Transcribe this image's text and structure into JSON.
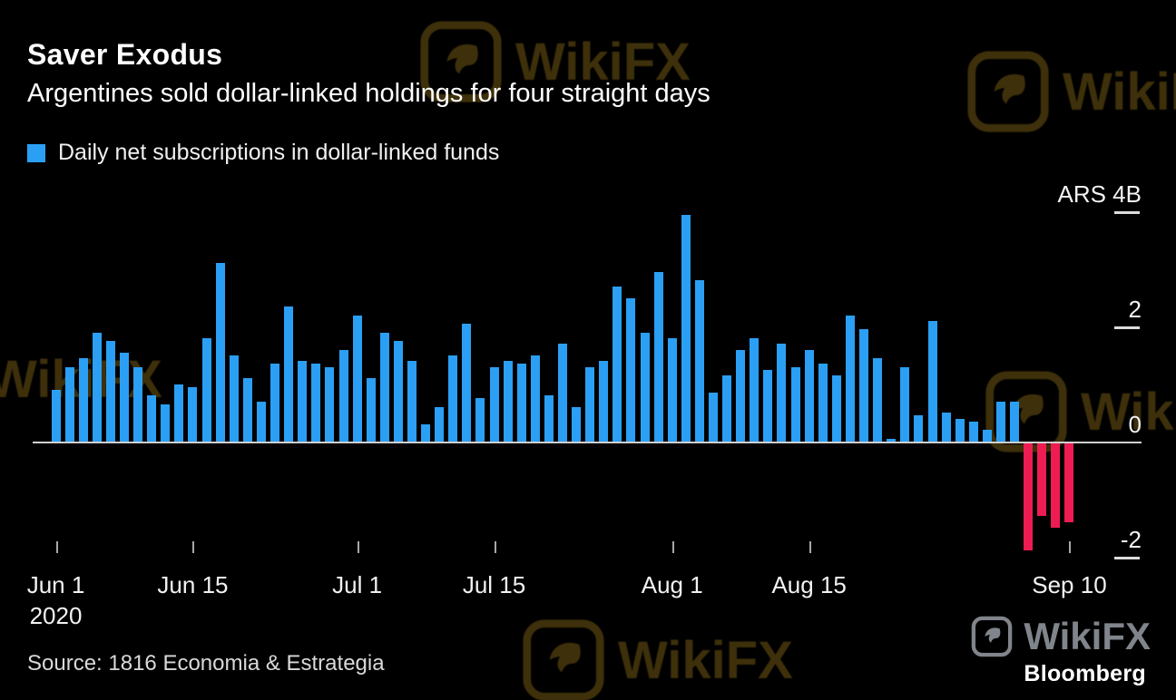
{
  "header": {
    "title": "Saver Exodus",
    "subtitle": "Argentines sold dollar-linked holdings for four straight days",
    "legend_label": "Daily net subscriptions in dollar-linked funds"
  },
  "chart_data": {
    "type": "bar",
    "title": "Saver Exodus",
    "subtitle": "Argentines sold dollar-linked holdings for four straight days",
    "series_name": "Daily net subscriptions in dollar-linked funds",
    "unit": "ARS billions",
    "ylim": [
      -2.3,
      4.6
    ],
    "grid": "off",
    "legend_position": "top-left",
    "y_ticks": [
      {
        "value": 4,
        "label": "ARS 4B"
      },
      {
        "value": 2,
        "label": "2"
      },
      {
        "value": 0,
        "label": "0"
      },
      {
        "value": -2,
        "label": "-2"
      }
    ],
    "x_ticks": [
      {
        "index": 0,
        "label": "Jun 1",
        "sublabel": "2020"
      },
      {
        "index": 10,
        "label": "Jun 15"
      },
      {
        "index": 22,
        "label": "Jul 1"
      },
      {
        "index": 32,
        "label": "Jul 15"
      },
      {
        "index": 45,
        "label": "Aug 1"
      },
      {
        "index": 55,
        "label": "Aug 15"
      },
      {
        "index": 74,
        "label": "Sep 10"
      }
    ],
    "values": [
      0.9,
      1.3,
      1.45,
      1.9,
      1.75,
      1.55,
      1.3,
      0.8,
      0.65,
      1.0,
      0.95,
      1.8,
      3.1,
      1.5,
      1.1,
      0.7,
      1.35,
      2.35,
      1.4,
      1.35,
      1.3,
      1.6,
      2.2,
      1.1,
      1.9,
      1.75,
      1.4,
      0.3,
      0.6,
      1.5,
      2.05,
      0.75,
      1.3,
      1.4,
      1.35,
      1.5,
      0.8,
      1.7,
      0.6,
      1.3,
      1.4,
      2.7,
      2.5,
      1.9,
      2.95,
      1.8,
      3.95,
      2.8,
      0.85,
      1.15,
      1.6,
      1.8,
      1.25,
      1.7,
      1.3,
      1.6,
      1.35,
      1.15,
      2.2,
      1.95,
      1.45,
      0.05,
      1.3,
      0.45,
      2.1,
      0.5,
      0.4,
      0.35,
      0.2,
      0.7,
      0.7,
      -1.9,
      -1.3,
      -1.5,
      -1.4
    ],
    "positive_color": "#2b9ff4",
    "negative_color": "#ee1c52"
  },
  "footer": {
    "source": "Source: 1816 Economia & Estrategia",
    "branding": "Bloomberg"
  },
  "watermark": {
    "label": "WikiFX"
  },
  "colors": {
    "background": "#000000",
    "bar_positive": "#2b9ff4",
    "bar_negative": "#ee1c52",
    "baseline": "#cfcfcf",
    "text": "#ffffff",
    "watermark_gold": "#7d6114",
    "watermark_gray": "#8b9097"
  }
}
